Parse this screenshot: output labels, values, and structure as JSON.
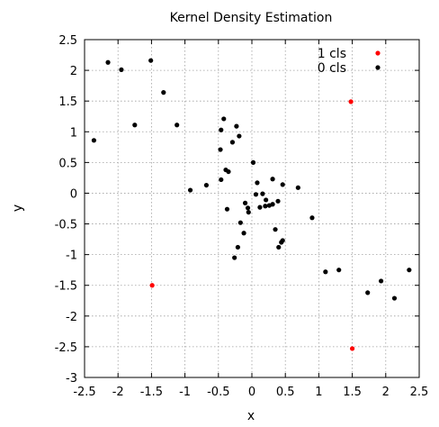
{
  "chart_data": {
    "type": "scatter",
    "title": "Kernel Density Estimation",
    "xlabel": "x",
    "ylabel": "y",
    "xlim": [
      -2.5,
      2.5
    ],
    "ylim": [
      -3,
      2.5
    ],
    "xticks": [
      -2.5,
      -2,
      -1.5,
      -1,
      -0.5,
      0,
      0.5,
      1,
      1.5,
      2,
      2.5
    ],
    "yticks": [
      -3,
      -2.5,
      -2,
      -1.5,
      -1,
      -0.5,
      0,
      0.5,
      1,
      1.5,
      2,
      2.5
    ],
    "grid": true,
    "legend_position": "top-right",
    "series": [
      {
        "name": "1 cls",
        "color": "#ff0000",
        "points": [
          [
            1.48,
            1.49
          ],
          [
            -1.49,
            -1.5
          ],
          [
            1.5,
            -2.53
          ]
        ]
      },
      {
        "name": "0 cls",
        "color": "#000000",
        "points": [
          [
            -2.15,
            2.13
          ],
          [
            -1.95,
            2.01
          ],
          [
            -1.51,
            2.16
          ],
          [
            -1.32,
            1.64
          ],
          [
            -1.75,
            1.11
          ],
          [
            -1.12,
            1.11
          ],
          [
            -2.36,
            0.86
          ],
          [
            -0.42,
            1.21
          ],
          [
            -0.46,
            1.03
          ],
          [
            -0.23,
            1.09
          ],
          [
            -0.29,
            0.83
          ],
          [
            -0.19,
            0.93
          ],
          [
            -0.47,
            0.71
          ],
          [
            -0.39,
            0.38
          ],
          [
            -0.35,
            0.35
          ],
          [
            0.02,
            0.5
          ],
          [
            -0.46,
            0.22
          ],
          [
            -0.68,
            0.13
          ],
          [
            -0.92,
            0.05
          ],
          [
            0.08,
            0.17
          ],
          [
            0.46,
            0.14
          ],
          [
            0.69,
            0.09
          ],
          [
            0.31,
            0.23
          ],
          [
            0.06,
            -0.02
          ],
          [
            0.16,
            -0.01
          ],
          [
            0.21,
            -0.11
          ],
          [
            0.26,
            -0.2
          ],
          [
            0.31,
            -0.18
          ],
          [
            0.39,
            -0.13
          ],
          [
            0.12,
            -0.23
          ],
          [
            0.2,
            -0.21
          ],
          [
            -0.1,
            -0.16
          ],
          [
            -0.06,
            -0.24
          ],
          [
            -0.05,
            -0.31
          ],
          [
            -0.37,
            -0.26
          ],
          [
            -0.17,
            -0.48
          ],
          [
            -0.12,
            -0.65
          ],
          [
            0.35,
            -0.59
          ],
          [
            0.9,
            -0.4
          ],
          [
            0.46,
            -0.77
          ],
          [
            0.44,
            -0.8
          ],
          [
            0.4,
            -0.88
          ],
          [
            -0.21,
            -0.88
          ],
          [
            -0.26,
            -1.05
          ],
          [
            1.1,
            -1.28
          ],
          [
            1.3,
            -1.25
          ],
          [
            1.73,
            -1.62
          ],
          [
            1.93,
            -1.43
          ],
          [
            2.13,
            -1.71
          ],
          [
            2.35,
            -1.25
          ]
        ]
      }
    ]
  }
}
